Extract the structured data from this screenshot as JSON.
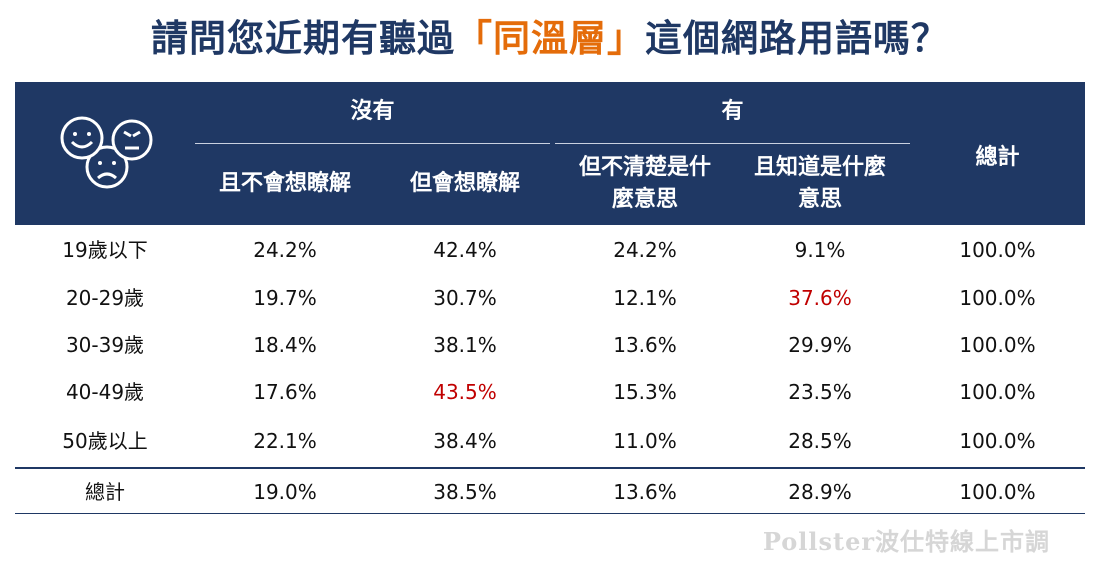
{
  "title": {
    "before": "請問您近期有聽過",
    "highlight": "「同溫層」",
    "after": "這個網路用語嗎？"
  },
  "header": {
    "group_no": "沒有",
    "group_yes": "有",
    "col1": "且不會想瞭解",
    "col2": "但會想瞭解",
    "col3_line1": "但不清楚是什",
    "col3_line2": "麼意思",
    "col4_line1": "且知道是什麼",
    "col4_line2": "意思",
    "total": "總計"
  },
  "colors": {
    "header_bg": "#1f3864",
    "title": "#1f3864",
    "highlight": "#e46c0a",
    "emphasis": "#c00000"
  },
  "watermark": "Pollster波仕特線上市調",
  "chart_data": {
    "type": "table",
    "title": "請問您近期有聽過「同溫層」這個網路用語嗎？",
    "columns": [
      "沒有 且不會想瞭解",
      "沒有 但會想瞭解",
      "有 但不清楚是什麼意思",
      "有 且知道是什麼意思",
      "總計"
    ],
    "rows": [
      {
        "label": "19歲以下",
        "values": [
          "24.2%",
          "42.4%",
          "24.2%",
          "9.1%",
          "100.0%"
        ],
        "highlight": -1
      },
      {
        "label": "20-29歲",
        "values": [
          "19.7%",
          "30.7%",
          "12.1%",
          "37.6%",
          "100.0%"
        ],
        "highlight": 3
      },
      {
        "label": "30-39歲",
        "values": [
          "18.4%",
          "38.1%",
          "13.6%",
          "29.9%",
          "100.0%"
        ],
        "highlight": -1
      },
      {
        "label": "40-49歲",
        "values": [
          "17.6%",
          "43.5%",
          "15.3%",
          "23.5%",
          "100.0%"
        ],
        "highlight": 1
      },
      {
        "label": "50歲以上",
        "values": [
          "22.1%",
          "38.4%",
          "11.0%",
          "28.5%",
          "100.0%"
        ],
        "highlight": -1
      },
      {
        "label": "總計",
        "values": [
          "19.0%",
          "38.5%",
          "13.6%",
          "28.9%",
          "100.0%"
        ],
        "highlight": -1
      }
    ]
  }
}
